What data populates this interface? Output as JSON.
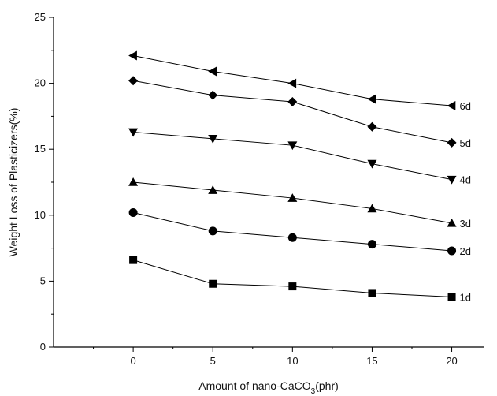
{
  "chart_data": {
    "type": "line",
    "xlabel": {
      "prefix": "Amount of nano-CaCO",
      "sub": "3",
      "suffix": "(phr)"
    },
    "ylabel": "Weight Loss of Plasticizers(%)",
    "xlim": [
      -5,
      22
    ],
    "ylim": [
      0,
      25
    ],
    "xticks": [
      0,
      5,
      10,
      15,
      20
    ],
    "yticks": [
      0,
      5,
      10,
      15,
      20,
      25
    ],
    "grid": false,
    "x": [
      0,
      5,
      10,
      15,
      20
    ],
    "series": [
      {
        "name": "1d",
        "marker": "square",
        "values": [
          6.6,
          4.8,
          4.6,
          4.1,
          3.8
        ]
      },
      {
        "name": "2d",
        "marker": "circle",
        "values": [
          10.2,
          8.8,
          8.3,
          7.8,
          7.3
        ]
      },
      {
        "name": "3d",
        "marker": "triangle-up",
        "values": [
          12.5,
          11.9,
          11.3,
          10.5,
          9.4
        ]
      },
      {
        "name": "4d",
        "marker": "triangle-down",
        "values": [
          16.3,
          15.8,
          15.3,
          13.9,
          12.7
        ]
      },
      {
        "name": "5d",
        "marker": "diamond",
        "values": [
          20.2,
          19.1,
          18.6,
          16.7,
          15.5
        ]
      },
      {
        "name": "6d",
        "marker": "triangle-left",
        "values": [
          22.1,
          20.9,
          20.0,
          18.8,
          18.3
        ]
      }
    ]
  }
}
